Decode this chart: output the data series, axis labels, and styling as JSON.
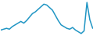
{
  "x": [
    0,
    1,
    2,
    3,
    4,
    5,
    6,
    7,
    8,
    9,
    10,
    11,
    12,
    13,
    14,
    15,
    16,
    17,
    18,
    19,
    20,
    21,
    22,
    23,
    24,
    25,
    26,
    27,
    28,
    29,
    30,
    31,
    32
  ],
  "y": [
    46,
    47,
    48,
    47,
    50,
    52,
    54,
    56,
    54,
    57,
    61,
    65,
    67,
    70,
    73,
    76,
    75,
    72,
    69,
    63,
    57,
    52,
    50,
    48,
    47,
    49,
    46,
    44,
    42,
    45,
    78,
    58,
    48
  ],
  "line_color": "#2196c4",
  "background_color": "#ffffff",
  "linewidth": 1.1
}
